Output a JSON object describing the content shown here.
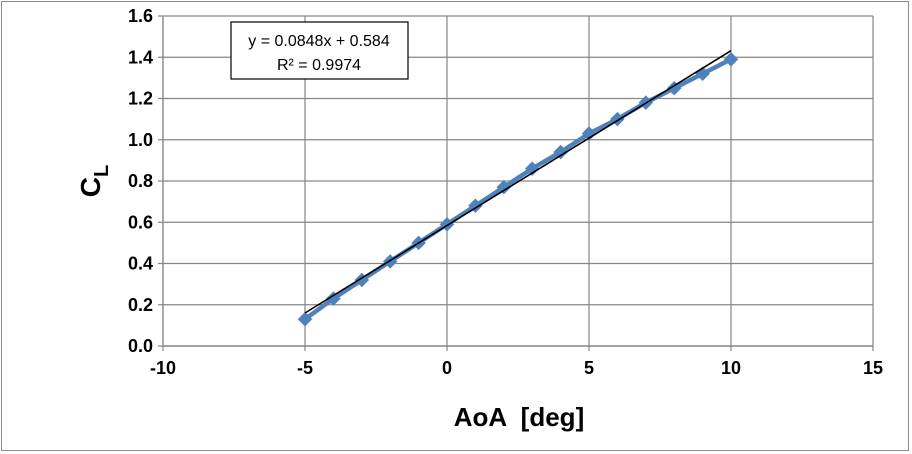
{
  "chart_data": {
    "type": "scatter",
    "title": "",
    "xlabel": "AoA  [deg]",
    "ylabel": "C",
    "ylabel_subscript": "L",
    "xlim": [
      -10,
      15
    ],
    "ylim": [
      0.0,
      1.6
    ],
    "xticks": [
      -10,
      -5,
      0,
      5,
      10,
      15
    ],
    "yticks": [
      0.0,
      0.2,
      0.4,
      0.6,
      0.8,
      1.0,
      1.2,
      1.4,
      1.6
    ],
    "xtick_labels": [
      "-10",
      "-5",
      "0",
      "5",
      "10",
      "15"
    ],
    "ytick_labels": [
      "0.0",
      "0.2",
      "0.4",
      "0.6",
      "0.8",
      "1.0",
      "1.2",
      "1.4",
      "1.6"
    ],
    "grid": true,
    "series": [
      {
        "color": "#4f81bd",
        "marker": "diamond",
        "x": [
          -5,
          -4,
          -3,
          -2,
          -1,
          0,
          1,
          2,
          3,
          4,
          5,
          6,
          7,
          8,
          9,
          10
        ],
        "y": [
          0.13,
          0.23,
          0.32,
          0.41,
          0.5,
          0.59,
          0.68,
          0.77,
          0.86,
          0.94,
          1.03,
          1.1,
          1.18,
          1.25,
          1.32,
          1.39
        ]
      }
    ],
    "trendline": {
      "color": "#000000",
      "slope": 0.0848,
      "intercept": 0.584,
      "x_range": [
        -5,
        10
      ],
      "equation": "y = 0.0848x + 0.584",
      "r_squared": "R² = 0.9974"
    }
  }
}
